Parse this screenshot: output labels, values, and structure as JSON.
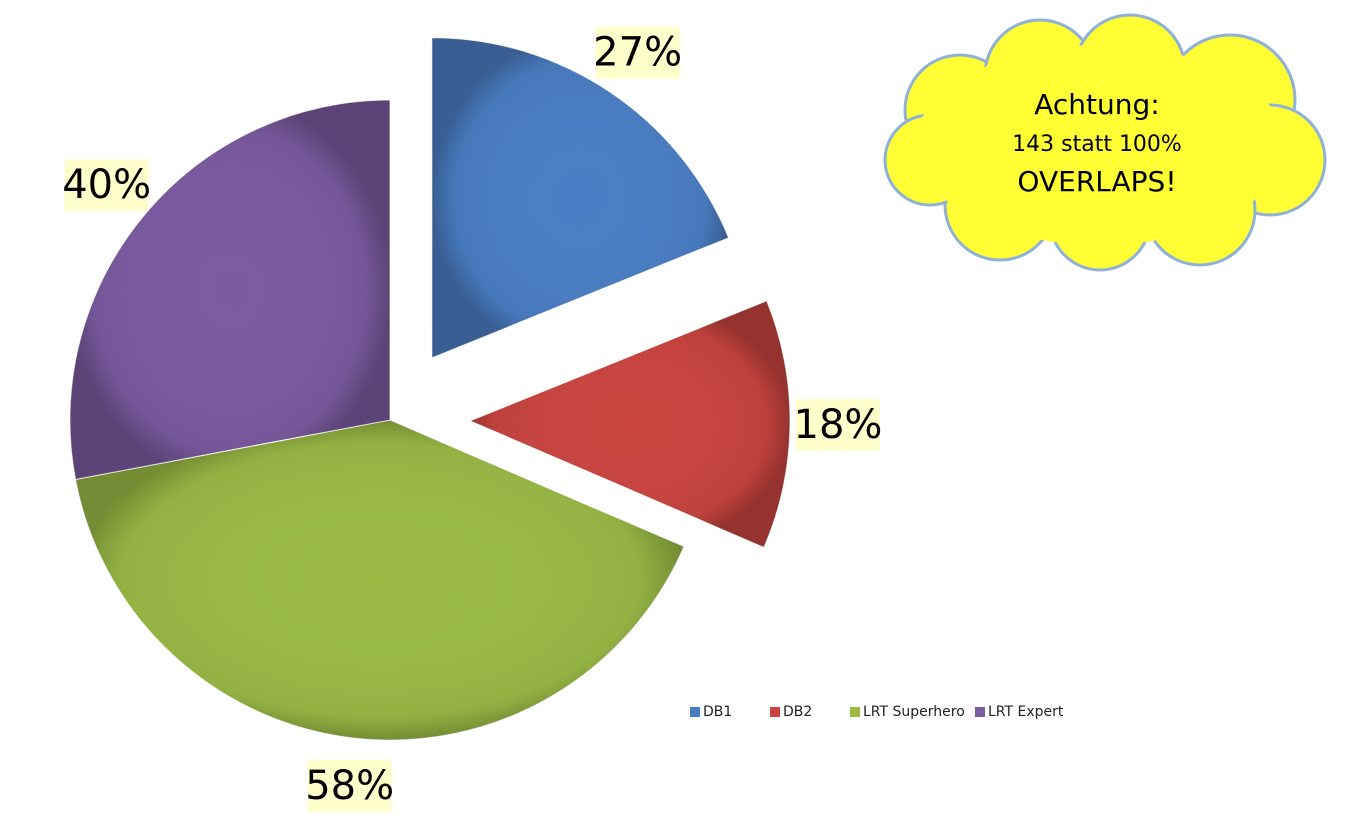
{
  "chart_data": {
    "type": "pie",
    "categories": [
      "DB1",
      "DB2",
      "LRT Superhero",
      "LRT Expert"
    ],
    "values": [
      27,
      18,
      58,
      40
    ],
    "value_labels": [
      "27%",
      "18%",
      "58%",
      "40%"
    ],
    "colors": [
      "#4a7ec4",
      "#c9443f",
      "#9bbb45",
      "#7b5ba1"
    ],
    "legend": "bottom-right",
    "annotations": [
      "Achtung:",
      "143 statt 100%",
      "OVERLAPS!"
    ]
  }
}
